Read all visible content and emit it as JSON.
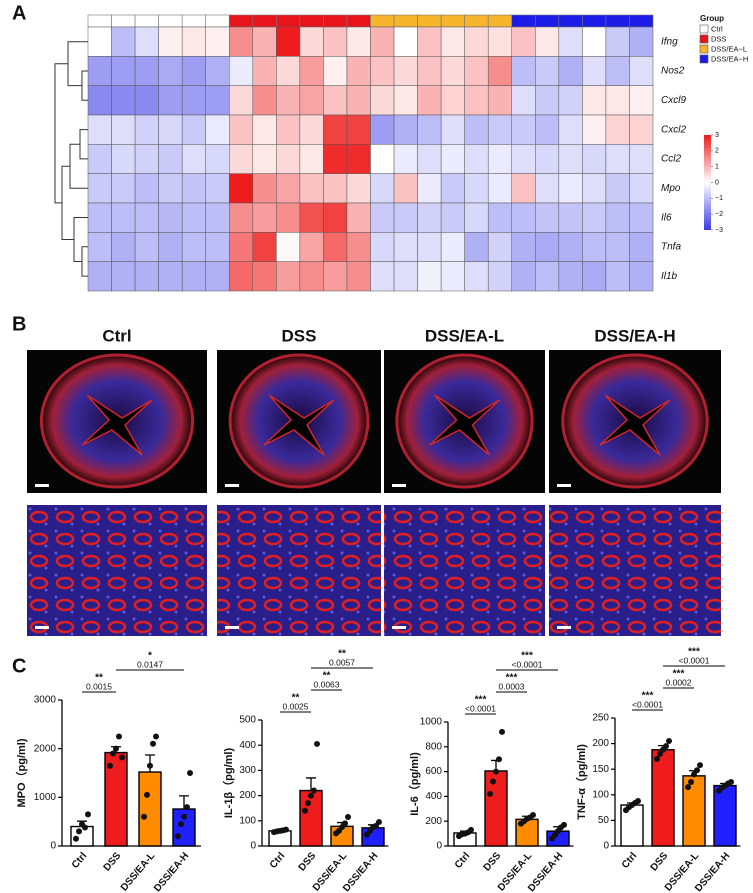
{
  "panels": [
    "A",
    "B",
    "C"
  ],
  "chart_data": [
    {
      "type": "heatmap",
      "rows": [
        "Ifng",
        "Nos2",
        "Cxcl9",
        "Cxcl2",
        "Ccl2",
        "Mpo",
        "Il6",
        "Tnfa",
        "Il1b"
      ],
      "column_group": [
        "Ctrl",
        "Ctrl",
        "Ctrl",
        "Ctrl",
        "Ctrl",
        "Ctrl",
        "DSS",
        "DSS",
        "DSS",
        "DSS",
        "DSS",
        "DSS",
        "DSS/EA−L",
        "DSS/EA−L",
        "DSS/EA−L",
        "DSS/EA−L",
        "DSS/EA−L",
        "DSS/EA−L",
        "DSS/EA−H",
        "DSS/EA−H",
        "DSS/EA−H",
        "DSS/EA−H",
        "DSS/EA−H",
        "DSS/EA−H"
      ],
      "values": [
        [
          0,
          -1,
          -0.5,
          0.2,
          0.3,
          0.2,
          1.5,
          1,
          3,
          0.5,
          0.8,
          0.3,
          1,
          0,
          0.8,
          0.3,
          0.5,
          0.4,
          0.8,
          0.3,
          -0.5,
          0,
          -0.8,
          -1.2
        ],
        [
          -1.5,
          -1.5,
          -1.5,
          -1.3,
          -1.5,
          -1.2,
          -0.3,
          1,
          0.5,
          1.3,
          0.2,
          1,
          0.8,
          0.5,
          0.8,
          0.5,
          0.8,
          1.5,
          -1,
          -0.8,
          -1.2,
          -0.5,
          -1,
          -0.5
        ],
        [
          -1.8,
          -1.8,
          -1.8,
          -1.5,
          -1.5,
          -1.5,
          0.5,
          1.5,
          1,
          1.2,
          0.8,
          1,
          0.5,
          0.3,
          1,
          0.6,
          0.8,
          1,
          -0.5,
          -0.8,
          -0.7,
          0.3,
          0.3,
          0.2
        ],
        [
          -0.5,
          -0.5,
          -0.7,
          -0.6,
          -0.8,
          -0.3,
          0.8,
          0.3,
          0.8,
          0.5,
          2.5,
          2.5,
          -1.5,
          -1.2,
          -1,
          -0.5,
          -1,
          -0.8,
          -0.8,
          -1,
          -0.5,
          0.2,
          0.6,
          0.6
        ],
        [
          -0.8,
          -0.6,
          -0.7,
          -0.8,
          -0.5,
          -0.6,
          0.5,
          0.3,
          0.5,
          0.3,
          2.8,
          2.8,
          0,
          -0.3,
          -0.5,
          -0.3,
          -0.5,
          -0.3,
          -0.5,
          -0.6,
          -0.5,
          -0.6,
          -0.5,
          -0.5
        ],
        [
          -0.8,
          -0.8,
          -1,
          -0.8,
          -0.9,
          -0.8,
          3,
          1.5,
          1.2,
          0.8,
          0.8,
          0.5,
          -0.6,
          0.8,
          -0.3,
          -0.8,
          -0.6,
          -0.3,
          0.8,
          -0.5,
          -0.3,
          -0.5,
          -0.8,
          -0.6
        ],
        [
          -1,
          -1,
          -1,
          -1.1,
          -1,
          -1,
          1.5,
          1.3,
          1.5,
          2.3,
          2.5,
          1,
          -0.8,
          -0.8,
          -0.7,
          -0.8,
          -0.6,
          -1,
          -1,
          -0.9,
          -0.9,
          -0.8,
          -1,
          -1
        ],
        [
          -1,
          -1.2,
          -1,
          -1.2,
          -1,
          -1,
          1.8,
          2.5,
          0.1,
          1.2,
          2,
          1.5,
          -0.6,
          -0.5,
          -0.5,
          -0.3,
          -1.2,
          -0.7,
          -1.2,
          -1.3,
          -1.2,
          -1,
          -1,
          -1.2
        ],
        [
          -1.2,
          -1.2,
          -1.2,
          -1.2,
          -1.2,
          -1.2,
          2,
          1.8,
          1.3,
          1.5,
          1.3,
          1.5,
          -0.5,
          -0.5,
          -0.2,
          -0.3,
          -0.5,
          -0.7,
          -1.2,
          -1,
          -1.2,
          -1.3,
          -1,
          -1.2
        ]
      ],
      "legend_title": "Group",
      "groups": [
        {
          "name": "Ctrl",
          "color": "#ffffff"
        },
        {
          "name": "DSS",
          "color": "#e8141c"
        },
        {
          "name": "DSS/EA−L",
          "color": "#f6b52c"
        },
        {
          "name": "DSS/EA−H",
          "color": "#1c1ce6"
        }
      ],
      "colorbar": {
        "lim": [
          -3,
          3
        ],
        "ticks": [
          3,
          2,
          1,
          0,
          {
            "value": -1,
            "label": "−1"
          },
          {
            "value": -2,
            "label": "−2"
          },
          {
            "value": -3,
            "label": "−3"
          }
        ],
        "low": "#3a3ae6",
        "mid": "#ffffff",
        "high": "#ee1c1c"
      }
    },
    {
      "type": "bar",
      "ylabel": "MPO（pg/ml)",
      "categories": [
        "Ctrl",
        "DSS",
        "DSS/EA-L",
        "DSS/EA-H"
      ],
      "colors": [
        "#ffffff",
        "#ee1c1c",
        "#ff8c00",
        "#1f1fff"
      ],
      "values": [
        400,
        1920,
        1520,
        760
      ],
      "errors": [
        110,
        120,
        350,
        270
      ],
      "points": [
        [
          150,
          300,
          450,
          380,
          650
        ],
        [
          1650,
          1900,
          2000,
          2250,
          1820
        ],
        [
          600,
          1050,
          1650,
          2100,
          2250
        ],
        [
          200,
          450,
          600,
          800,
          1500
        ]
      ],
      "ylim": [
        0,
        3000
      ],
      "yticks": [
        0,
        1000,
        2000,
        3000
      ],
      "brackets": [
        {
          "between": [
            "Ctrl",
            "DSS"
          ],
          "stars": "**",
          "p": "0.0015"
        },
        {
          "between": [
            "DSS",
            "DSS/EA-H"
          ],
          "stars": "*",
          "p": "0.0147"
        }
      ]
    },
    {
      "type": "bar",
      "ylabel": "IL-1β（pg/ml)",
      "categories": [
        "Ctrl",
        "DSS",
        "DSS/EA-L",
        "DSS/EA-H"
      ],
      "colors": [
        "#ffffff",
        "#ee1c1c",
        "#ff8c00",
        "#1f1fff"
      ],
      "values": [
        60,
        220,
        78,
        72
      ],
      "errors": [
        5,
        50,
        15,
        12
      ],
      "points": [
        [
          55,
          58,
          60,
          62,
          65
        ],
        [
          140,
          170,
          200,
          220,
          405
        ],
        [
          50,
          60,
          75,
          90,
          115
        ],
        [
          45,
          60,
          75,
          80,
          95
        ]
      ],
      "ylim": [
        0,
        500
      ],
      "yticks": [
        0,
        100,
        200,
        300,
        400,
        500
      ],
      "brackets": [
        {
          "between": [
            "Ctrl",
            "DSS"
          ],
          "stars": "**",
          "p": "0.0025"
        },
        {
          "between": [
            "DSS",
            "DSS/EA-L"
          ],
          "stars": "**",
          "p": "0.0063"
        },
        {
          "between": [
            "DSS",
            "DSS/EA-H"
          ],
          "stars": "**",
          "p": "0.0057"
        }
      ]
    },
    {
      "type": "bar",
      "ylabel": "IL-6（pg/ml)",
      "categories": [
        "Ctrl",
        "DSS",
        "DSS/EA-L",
        "DSS/EA-H"
      ],
      "colors": [
        "#ffffff",
        "#ee1c1c",
        "#ff8c00",
        "#1f1fff"
      ],
      "values": [
        105,
        605,
        215,
        120
      ],
      "errors": [
        15,
        85,
        25,
        35
      ],
      "points": [
        [
          80,
          95,
          100,
          110,
          130
        ],
        [
          420,
          520,
          600,
          700,
          920
        ],
        [
          180,
          200,
          220,
          230,
          250
        ],
        [
          60,
          90,
          120,
          150,
          170
        ]
      ],
      "ylim": [
        0,
        1000
      ],
      "yticks": [
        0,
        200,
        400,
        600,
        800,
        1000
      ],
      "brackets": [
        {
          "between": [
            "Ctrl",
            "DSS"
          ],
          "stars": "***",
          "p": "<0.0001"
        },
        {
          "between": [
            "DSS",
            "DSS/EA-L"
          ],
          "stars": "***",
          "p": "0.0003"
        },
        {
          "between": [
            "DSS",
            "DSS/EA-H"
          ],
          "stars": "***",
          "p": "<0.0001"
        }
      ]
    },
    {
      "type": "bar",
      "ylabel": "TNF-α（pg/ml)",
      "categories": [
        "Ctrl",
        "DSS",
        "DSS/EA-L",
        "DSS/EA-H"
      ],
      "colors": [
        "#ffffff",
        "#ee1c1c",
        "#ff8c00",
        "#1f1fff"
      ],
      "values": [
        80,
        188,
        137,
        118
      ],
      "errors": [
        4,
        8,
        10,
        4
      ],
      "points": [
        [
          70,
          76,
          80,
          84,
          88
        ],
        [
          170,
          180,
          188,
          195,
          205
        ],
        [
          115,
          125,
          140,
          148,
          158
        ],
        [
          108,
          114,
          118,
          122,
          125
        ]
      ],
      "ylim": [
        0,
        250
      ],
      "yticks": [
        0,
        50,
        100,
        150,
        200,
        250
      ],
      "brackets": [
        {
          "between": [
            "Ctrl",
            "DSS"
          ],
          "stars": "***",
          "p": "<0.0001"
        },
        {
          "between": [
            "DSS",
            "DSS/EA-L"
          ],
          "stars": "***",
          "p": "0.0002"
        },
        {
          "between": [
            "DSS",
            "DSS/EA-H"
          ],
          "stars": "***",
          "p": "<0.0001"
        }
      ]
    }
  ],
  "images": {
    "titles": [
      "Ctrl",
      "DSS",
      "DSS/EA-L",
      "DSS/EA-H"
    ]
  }
}
